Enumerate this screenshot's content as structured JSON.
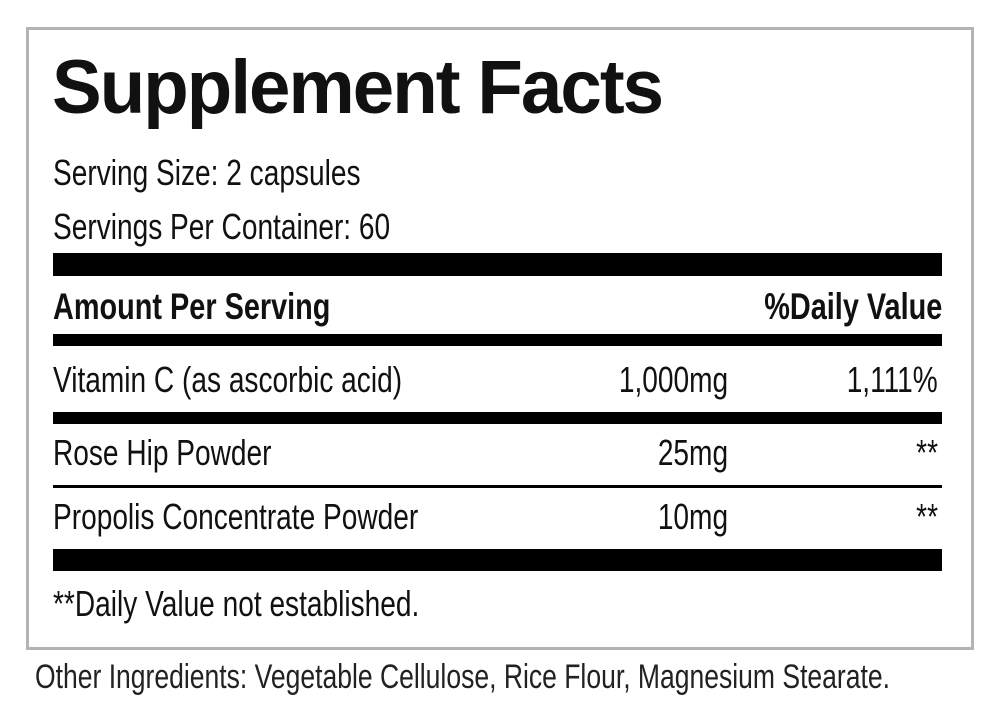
{
  "title": "Supplement Facts",
  "serving_size": "Serving Size: 2 capsules",
  "servings_per_container": "Servings Per Container: 60",
  "header": {
    "amount": "Amount Per Serving",
    "daily_value": "%Daily Value"
  },
  "rows": [
    {
      "name": "Vitamin C (as ascorbic acid)",
      "amount": "1,000mg",
      "dv": "1,111%"
    },
    {
      "name": "Rose Hip Powder",
      "amount": "25mg",
      "dv": "**"
    },
    {
      "name": "Propolis Concentrate Powder",
      "amount": "10mg",
      "dv": "**"
    }
  ],
  "footnote": "**Daily Value not established.",
  "other_ingredients": "Other Ingredients: Vegetable Cellulose, Rice Flour, Magnesium Stearate.",
  "colors": {
    "border": "#b3b3b3",
    "text": "#111111",
    "rule": "#000000"
  }
}
